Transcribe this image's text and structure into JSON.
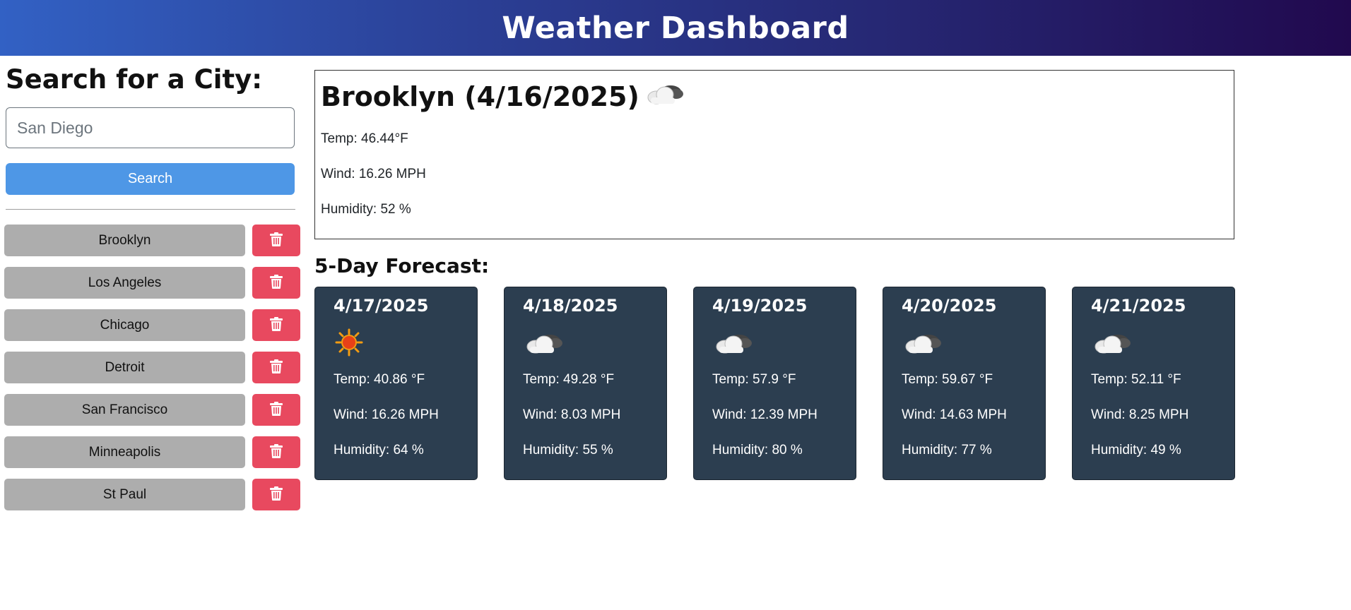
{
  "header": {
    "title": "Weather Dashboard"
  },
  "search": {
    "heading": "Search for a City:",
    "placeholder": "San Diego",
    "value": "",
    "button_label": "Search"
  },
  "history": [
    {
      "city": "Brooklyn"
    },
    {
      "city": "Los Angeles"
    },
    {
      "city": "Chicago"
    },
    {
      "city": "Detroit"
    },
    {
      "city": "San Francisco"
    },
    {
      "city": "Minneapolis"
    },
    {
      "city": "St Paul"
    }
  ],
  "current": {
    "title": "Brooklyn (4/16/2025)",
    "icon": "cloud-icon",
    "temp": "Temp: 46.44°F",
    "wind": "Wind: 16.26 MPH",
    "humidity": "Humidity: 52 %"
  },
  "forecast": {
    "title": "5-Day Forecast:",
    "days": [
      {
        "date": "4/17/2025",
        "icon": "sun-icon",
        "temp": "Temp: 40.86 °F",
        "wind": "Wind: 16.26 MPH",
        "humidity": "Humidity: 64 %"
      },
      {
        "date": "4/18/2025",
        "icon": "cloud-icon",
        "temp": "Temp: 49.28 °F",
        "wind": "Wind: 8.03 MPH",
        "humidity": "Humidity: 55 %"
      },
      {
        "date": "4/19/2025",
        "icon": "cloud-icon",
        "temp": "Temp: 57.9 °F",
        "wind": "Wind: 12.39 MPH",
        "humidity": "Humidity: 80 %"
      },
      {
        "date": "4/20/2025",
        "icon": "cloud-icon",
        "temp": "Temp: 59.67 °F",
        "wind": "Wind: 14.63 MPH",
        "humidity": "Humidity: 77 %"
      },
      {
        "date": "4/21/2025",
        "icon": "cloud-icon",
        "temp": "Temp: 52.11 °F",
        "wind": "Wind: 8.25 MPH",
        "humidity": "Humidity: 49 %"
      }
    ]
  },
  "colors": {
    "header_gradient_start": "#3261c4",
    "header_gradient_end": "#21094e",
    "search_button": "#4e97e6",
    "history_button": "#adadad",
    "delete_button": "#e8495f",
    "forecast_card": "#2c3e50"
  }
}
